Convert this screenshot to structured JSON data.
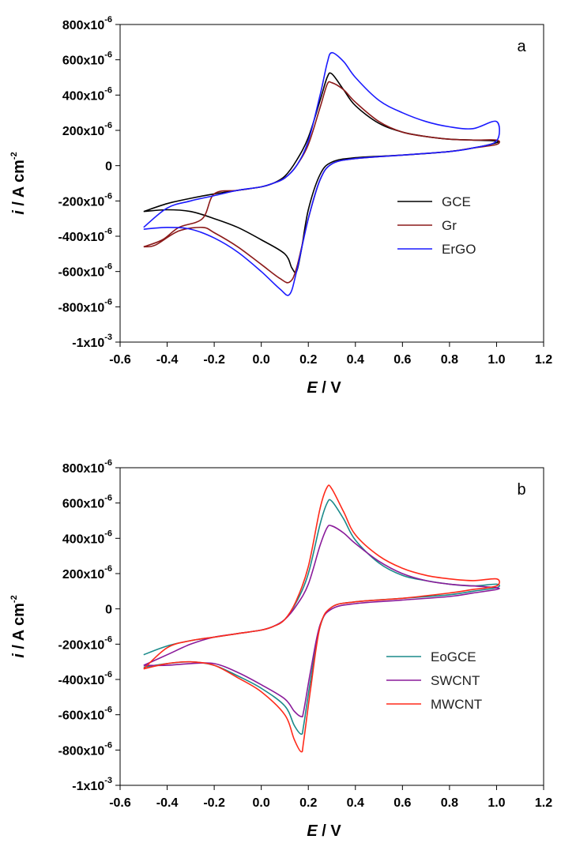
{
  "chart_data": [
    {
      "type": "line",
      "panel_label": "a",
      "xlabel_italic": "E",
      "xlabel_unit": " / V",
      "ylabel_italic": "i",
      "ylabel_unit": " / A cm",
      "ylabel_exp": "-2",
      "xlim": [
        -0.6,
        1.2
      ],
      "ylim": [
        -0.001,
        0.0008
      ],
      "x_ticks": [
        "-0.6",
        "-0.4",
        "-0.2",
        "0.0",
        "0.2",
        "0.4",
        "0.6",
        "0.8",
        "1.0",
        "1.2"
      ],
      "y_ticks": [
        {
          "base": "800x10",
          "exp": "-6"
        },
        {
          "base": "600x10",
          "exp": "-6"
        },
        {
          "base": "400x10",
          "exp": "-6"
        },
        {
          "base": "200x10",
          "exp": "-6"
        },
        {
          "base": "0",
          "exp": ""
        },
        {
          "base": "-200x10",
          "exp": "-6"
        },
        {
          "base": "-400x10",
          "exp": "-6"
        },
        {
          "base": "-600x10",
          "exp": "-6"
        },
        {
          "base": "-800x10",
          "exp": "-6"
        },
        {
          "base": "-1x10",
          "exp": "-3"
        }
      ],
      "legend_position": "right",
      "series": [
        {
          "name": "GCE",
          "color": "#000000",
          "points": [
            [
              -0.5,
              -0.00026
            ],
            [
              -0.4,
              -0.000215
            ],
            [
              -0.3,
              -0.000185
            ],
            [
              -0.2,
              -0.00016
            ],
            [
              -0.1,
              -0.00014
            ],
            [
              0.0,
              -0.00012
            ],
            [
              0.05,
              -0.0001
            ],
            [
              0.1,
              -6e-05
            ],
            [
              0.15,
              3e-05
            ],
            [
              0.2,
              0.00016
            ],
            [
              0.25,
              0.00037
            ],
            [
              0.28,
              0.0005
            ],
            [
              0.3,
              0.00052
            ],
            [
              0.35,
              0.00043
            ],
            [
              0.4,
              0.00034
            ],
            [
              0.5,
              0.00024
            ],
            [
              0.6,
              0.00019
            ],
            [
              0.7,
              0.000165
            ],
            [
              0.8,
              0.00015
            ],
            [
              0.9,
              0.000145
            ],
            [
              1.0,
              0.00014
            ],
            [
              1.0,
              0.00013
            ],
            [
              0.9,
              0.0001
            ],
            [
              0.8,
              8e-05
            ],
            [
              0.6,
              6e-05
            ],
            [
              0.4,
              4.5e-05
            ],
            [
              0.3,
              2e-05
            ],
            [
              0.25,
              -5e-05
            ],
            [
              0.2,
              -0.00025
            ],
            [
              0.17,
              -0.00048
            ],
            [
              0.15,
              -0.0006
            ],
            [
              0.13,
              -0.00058
            ],
            [
              0.1,
              -0.0005
            ],
            [
              0.0,
              -0.00042
            ],
            [
              -0.1,
              -0.00035
            ],
            [
              -0.2,
              -0.0003
            ],
            [
              -0.3,
              -0.00026
            ],
            [
              -0.4,
              -0.00025
            ],
            [
              -0.5,
              -0.00026
            ]
          ]
        },
        {
          "name": "Gr",
          "color": "#8b1a1a",
          "points": [
            [
              -0.5,
              -0.00046
            ],
            [
              -0.42,
              -0.00042
            ],
            [
              -0.35,
              -0.00035
            ],
            [
              -0.25,
              -0.0003
            ],
            [
              -0.2,
              -0.00016
            ],
            [
              -0.1,
              -0.00014
            ],
            [
              0.0,
              -0.00012
            ],
            [
              0.05,
              -0.0001
            ],
            [
              0.1,
              -7e-05
            ],
            [
              0.15,
              0.0
            ],
            [
              0.2,
              0.00012
            ],
            [
              0.25,
              0.00033
            ],
            [
              0.28,
              0.00046
            ],
            [
              0.3,
              0.00047
            ],
            [
              0.35,
              0.00043
            ],
            [
              0.4,
              0.00036
            ],
            [
              0.5,
              0.00025
            ],
            [
              0.6,
              0.00019
            ],
            [
              0.7,
              0.000165
            ],
            [
              0.8,
              0.00015
            ],
            [
              0.9,
              0.000145
            ],
            [
              1.0,
              0.000145
            ],
            [
              1.0,
              0.00012
            ],
            [
              0.9,
              0.0001
            ],
            [
              0.8,
              8e-05
            ],
            [
              0.6,
              6e-05
            ],
            [
              0.4,
              4e-05
            ],
            [
              0.3,
              1e-05
            ],
            [
              0.25,
              -8e-05
            ],
            [
              0.2,
              -0.0003
            ],
            [
              0.15,
              -0.00058
            ],
            [
              0.12,
              -0.00066
            ],
            [
              0.08,
              -0.00064
            ],
            [
              0.0,
              -0.00056
            ],
            [
              -0.1,
              -0.00046
            ],
            [
              -0.2,
              -0.00038
            ],
            [
              -0.25,
              -0.00035
            ],
            [
              -0.35,
              -0.00037
            ],
            [
              -0.45,
              -0.00045
            ],
            [
              -0.5,
              -0.00046
            ]
          ]
        },
        {
          "name": "ErGO",
          "color": "#1a1aff",
          "points": [
            [
              -0.5,
              -0.00035
            ],
            [
              -0.4,
              -0.00024
            ],
            [
              -0.3,
              -0.0002
            ],
            [
              -0.2,
              -0.00017
            ],
            [
              -0.1,
              -0.00014
            ],
            [
              0.0,
              -0.00012
            ],
            [
              0.05,
              -0.0001
            ],
            [
              0.1,
              -7e-05
            ],
            [
              0.15,
              0.0
            ],
            [
              0.2,
              0.00014
            ],
            [
              0.25,
              0.0004
            ],
            [
              0.28,
              0.00058
            ],
            [
              0.3,
              0.00064
            ],
            [
              0.35,
              0.00059
            ],
            [
              0.4,
              0.0005
            ],
            [
              0.5,
              0.00037
            ],
            [
              0.6,
              0.0003
            ],
            [
              0.7,
              0.00025
            ],
            [
              0.8,
              0.00022
            ],
            [
              0.9,
              0.00021
            ],
            [
              1.0,
              0.00025
            ],
            [
              1.0,
              0.00014
            ],
            [
              0.9,
              0.0001
            ],
            [
              0.8,
              8e-05
            ],
            [
              0.6,
              6e-05
            ],
            [
              0.4,
              4e-05
            ],
            [
              0.3,
              1e-05
            ],
            [
              0.25,
              -8e-05
            ],
            [
              0.2,
              -0.0003
            ],
            [
              0.15,
              -0.0006
            ],
            [
              0.12,
              -0.00073
            ],
            [
              0.08,
              -0.0007
            ],
            [
              0.0,
              -0.0006
            ],
            [
              -0.1,
              -0.00049
            ],
            [
              -0.2,
              -0.00041
            ],
            [
              -0.3,
              -0.00036
            ],
            [
              -0.4,
              -0.00035
            ],
            [
              -0.5,
              -0.00036
            ]
          ]
        }
      ]
    },
    {
      "type": "line",
      "panel_label": "b",
      "xlabel_italic": "E",
      "xlabel_unit": " / V",
      "ylabel_italic": "i",
      "ylabel_unit": " / A cm",
      "ylabel_exp": "-2",
      "xlim": [
        -0.6,
        1.2
      ],
      "ylim": [
        -0.001,
        0.0008
      ],
      "x_ticks": [
        "-0.6",
        "-0.4",
        "-0.2",
        "0.0",
        "0.2",
        "0.4",
        "0.6",
        "0.8",
        "1.0",
        "1.2"
      ],
      "y_ticks": [
        {
          "base": "800x10",
          "exp": "-6"
        },
        {
          "base": "600x10",
          "exp": "-6"
        },
        {
          "base": "400x10",
          "exp": "-6"
        },
        {
          "base": "200x10",
          "exp": "-6"
        },
        {
          "base": "0",
          "exp": ""
        },
        {
          "base": "-200x10",
          "exp": "-6"
        },
        {
          "base": "-400x10",
          "exp": "-6"
        },
        {
          "base": "-600x10",
          "exp": "-6"
        },
        {
          "base": "-800x10",
          "exp": "-6"
        },
        {
          "base": "-1x10",
          "exp": "-3"
        }
      ],
      "legend_position": "right",
      "series": [
        {
          "name": "EoGCE",
          "color": "#1a8a8a",
          "points": [
            [
              -0.5,
              -0.00026
            ],
            [
              -0.4,
              -0.00021
            ],
            [
              -0.3,
              -0.00018
            ],
            [
              -0.2,
              -0.00016
            ],
            [
              -0.1,
              -0.00014
            ],
            [
              0.0,
              -0.00012
            ],
            [
              0.05,
              -0.0001
            ],
            [
              0.1,
              -6e-05
            ],
            [
              0.15,
              4e-05
            ],
            [
              0.2,
              0.0002
            ],
            [
              0.25,
              0.00048
            ],
            [
              0.28,
              0.0006
            ],
            [
              0.3,
              0.00061
            ],
            [
              0.35,
              0.00051
            ],
            [
              0.4,
              0.00039
            ],
            [
              0.5,
              0.00026
            ],
            [
              0.6,
              0.00019
            ],
            [
              0.7,
              0.00016
            ],
            [
              0.8,
              0.00014
            ],
            [
              0.9,
              0.00013
            ],
            [
              1.0,
              0.00014
            ],
            [
              1.0,
              0.00012
            ],
            [
              0.9,
              0.0001
            ],
            [
              0.8,
              8e-05
            ],
            [
              0.6,
              6e-05
            ],
            [
              0.4,
              4e-05
            ],
            [
              0.3,
              1e-05
            ],
            [
              0.25,
              -0.0001
            ],
            [
              0.21,
              -0.0004
            ],
            [
              0.18,
              -0.00066
            ],
            [
              0.17,
              -0.00071
            ],
            [
              0.14,
              -0.00066
            ],
            [
              0.1,
              -0.00055
            ],
            [
              0.0,
              -0.00045
            ],
            [
              -0.1,
              -0.00038
            ],
            [
              -0.2,
              -0.00032
            ],
            [
              -0.3,
              -0.0003
            ],
            [
              -0.4,
              -0.00031
            ],
            [
              -0.5,
              -0.00033
            ]
          ]
        },
        {
          "name": "SWCNT",
          "color": "#8a1a9a",
          "points": [
            [
              -0.5,
              -0.00032
            ],
            [
              -0.4,
              -0.00026
            ],
            [
              -0.3,
              -0.0002
            ],
            [
              -0.2,
              -0.00016
            ],
            [
              -0.1,
              -0.00014
            ],
            [
              0.0,
              -0.00012
            ],
            [
              0.05,
              -0.0001
            ],
            [
              0.1,
              -6e-05
            ],
            [
              0.15,
              2e-05
            ],
            [
              0.2,
              0.00014
            ],
            [
              0.25,
              0.00036
            ],
            [
              0.28,
              0.00046
            ],
            [
              0.3,
              0.00047
            ],
            [
              0.35,
              0.00043
            ],
            [
              0.4,
              0.00037
            ],
            [
              0.5,
              0.00027
            ],
            [
              0.6,
              0.0002
            ],
            [
              0.7,
              0.00016
            ],
            [
              0.8,
              0.00014
            ],
            [
              0.9,
              0.00013
            ],
            [
              1.0,
              0.00012
            ],
            [
              1.0,
              0.00011
            ],
            [
              0.9,
              9e-05
            ],
            [
              0.8,
              7e-05
            ],
            [
              0.6,
              5e-05
            ],
            [
              0.4,
              3e-05
            ],
            [
              0.3,
              0.0
            ],
            [
              0.25,
              -9e-05
            ],
            [
              0.21,
              -0.00035
            ],
            [
              0.18,
              -0.00058
            ],
            [
              0.17,
              -0.00061
            ],
            [
              0.14,
              -0.00058
            ],
            [
              0.1,
              -0.00051
            ],
            [
              0.0,
              -0.00043
            ],
            [
              -0.1,
              -0.00036
            ],
            [
              -0.2,
              -0.00031
            ],
            [
              -0.3,
              -0.00031
            ],
            [
              -0.4,
              -0.00032
            ],
            [
              -0.5,
              -0.00032
            ]
          ]
        },
        {
          "name": "MWCNT",
          "color": "#ff2a1a",
          "points": [
            [
              -0.5,
              -0.00034
            ],
            [
              -0.4,
              -0.00022
            ],
            [
              -0.3,
              -0.00018
            ],
            [
              -0.2,
              -0.00016
            ],
            [
              -0.1,
              -0.00014
            ],
            [
              0.0,
              -0.00012
            ],
            [
              0.05,
              -0.0001
            ],
            [
              0.1,
              -6e-05
            ],
            [
              0.15,
              5e-05
            ],
            [
              0.2,
              0.00024
            ],
            [
              0.25,
              0.00057
            ],
            [
              0.28,
              0.00069
            ],
            [
              0.3,
              0.00068
            ],
            [
              0.35,
              0.00055
            ],
            [
              0.4,
              0.00042
            ],
            [
              0.5,
              0.0003
            ],
            [
              0.6,
              0.00023
            ],
            [
              0.7,
              0.00019
            ],
            [
              0.8,
              0.00017
            ],
            [
              0.9,
              0.00016
            ],
            [
              1.0,
              0.00017
            ],
            [
              1.0,
              0.00013
            ],
            [
              0.9,
              0.00011
            ],
            [
              0.8,
              9e-05
            ],
            [
              0.6,
              6e-05
            ],
            [
              0.4,
              4e-05
            ],
            [
              0.3,
              1e-05
            ],
            [
              0.25,
              -0.0001
            ],
            [
              0.21,
              -0.00045
            ],
            [
              0.18,
              -0.00075
            ],
            [
              0.17,
              -0.00081
            ],
            [
              0.14,
              -0.00074
            ],
            [
              0.1,
              -0.0006
            ],
            [
              0.0,
              -0.00047
            ],
            [
              -0.1,
              -0.00039
            ],
            [
              -0.2,
              -0.00032
            ],
            [
              -0.3,
              -0.0003
            ],
            [
              -0.4,
              -0.00031
            ],
            [
              -0.5,
              -0.00034
            ]
          ]
        }
      ]
    }
  ]
}
